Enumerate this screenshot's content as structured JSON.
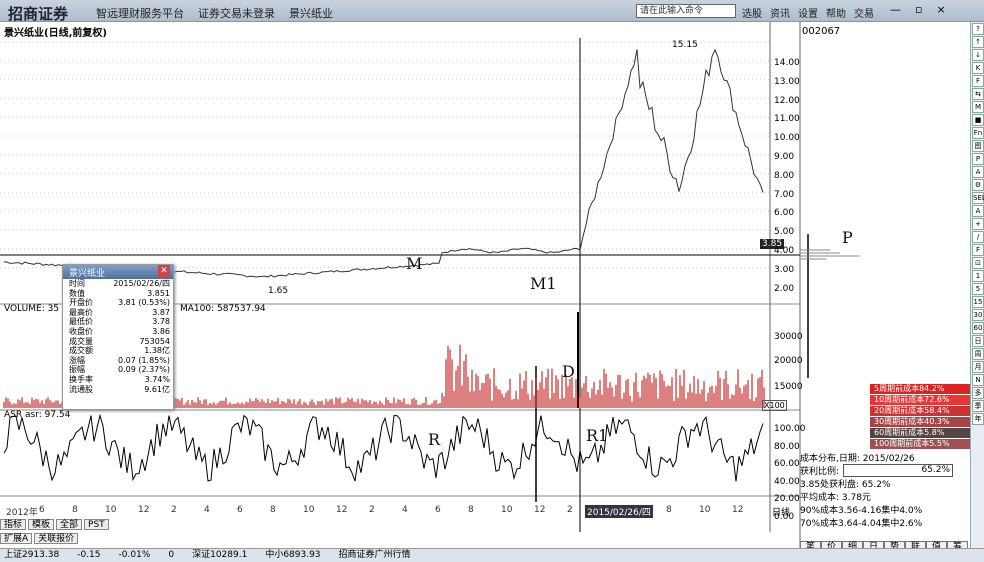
{
  "window": {
    "logo": "招商证券",
    "menu": [
      "智远理财服务平台",
      "证券交易未登录",
      "景兴纸业"
    ],
    "search_placeholder": "请在此输入命令",
    "right_menu": [
      "选股",
      "资讯",
      "设置",
      "帮助",
      "交易"
    ],
    "controls": [
      "—",
      "▫",
      "×"
    ]
  },
  "chart": {
    "title": "景兴纸业(日线,前复权)",
    "code": "002067",
    "max_label": "15.15",
    "min_label": "1.65",
    "current_price_tag": "3.85",
    "y_ticks": [
      "14.00",
      "13.00",
      "12.00",
      "11.00",
      "10.00",
      "9.00",
      "8.00",
      "7.00",
      "6.00",
      "5.00",
      "4.00",
      "3.00",
      "2.00"
    ],
    "x_ticks": [
      "2012年",
      "6",
      "8",
      "10",
      "12",
      "2",
      "4",
      "6",
      "8",
      "10",
      "12",
      "2",
      "4",
      "6",
      "8",
      "10",
      "12",
      "2",
      "4",
      "6",
      "8",
      "10",
      "12"
    ],
    "cursor_date": "2015/02/26/四",
    "period": "日线",
    "annotations": [
      "M",
      "M1",
      "P",
      "D",
      "R",
      "R1"
    ]
  },
  "volume": {
    "label": "VOLUME: 35",
    "ma": "MA100: 587537.94",
    "y_ticks": [
      "30000",
      "20000",
      "15000"
    ],
    "unit": "X100"
  },
  "asr": {
    "label": "ASR asr: 97.54",
    "y_ticks": [
      "100.00",
      "80.00",
      "60.00",
      "40.00",
      "20.00",
      "0.00"
    ]
  },
  "info": {
    "title": "景兴纸业",
    "rows": [
      [
        "时间",
        "2015/02/26/四"
      ],
      [
        "数值",
        "3.851"
      ],
      [
        "开盘价",
        "3.81 (0.53%)"
      ],
      [
        "最高价",
        "3.87"
      ],
      [
        "最低价",
        "3.78"
      ],
      [
        "收盘价",
        "3.86"
      ],
      [
        "成交量",
        "753054"
      ],
      [
        "成交额",
        "1.38亿"
      ],
      [
        "涨幅",
        "0.07 (1.85%)"
      ],
      [
        "振幅",
        "0.09 (2.37%)"
      ],
      [
        "换手率",
        "3.74%"
      ],
      [
        "流通股",
        "9.61亿"
      ]
    ]
  },
  "cost": {
    "bars": [
      {
        "label": "5周期前成本84.2%",
        "color": "#d22"
      },
      {
        "label": "10周期前成本72.6%",
        "color": "#e33"
      },
      {
        "label": "20周期前成本58.4%",
        "color": "#c33"
      },
      {
        "label": "30周期前成本40.3%",
        "color": "#a44"
      },
      {
        "label": "60周期前成本5.8%",
        "color": "#544"
      },
      {
        "label": "100周期前成本5.5%",
        "color": "#a05050"
      }
    ],
    "date_line": "成本分布,日期: 2015/02/26",
    "ratio_label": "获利比例:",
    "ratio_value": "65.2%",
    "profit_line": "3.85处获利盘: 65.2%",
    "avg_cost": "平均成本: 3.78元",
    "line90": "90%成本3.56-4.16集中4.0%",
    "line70": "70%成本3.64-4.04集中2.6%"
  },
  "bottom_tabs": [
    "指标",
    "模板",
    "全部",
    "PST"
  ],
  "bottom_tabs2": [
    "扩展A",
    "关联报价"
  ],
  "right_tabs": [
    "笔",
    "价",
    "细",
    "日",
    "势",
    "联",
    "值",
    "筹"
  ],
  "status": [
    "上证2913.38",
    "-0.15",
    "-0.01%",
    "0",
    "深证10289.1",
    "中小6893.93",
    "招商证券广州行情"
  ],
  "sidebar_tools": [
    "?",
    "↑",
    "↓",
    "K",
    "F",
    "⇆",
    "M",
    "■",
    "Fn",
    "图",
    "P",
    "A",
    "⚙",
    "SEL",
    "A",
    "+",
    "/",
    "F",
    "⊡",
    "1",
    "5",
    "15",
    "30",
    "60",
    "日",
    "周",
    "月",
    "N",
    "多",
    "季",
    "年"
  ]
}
